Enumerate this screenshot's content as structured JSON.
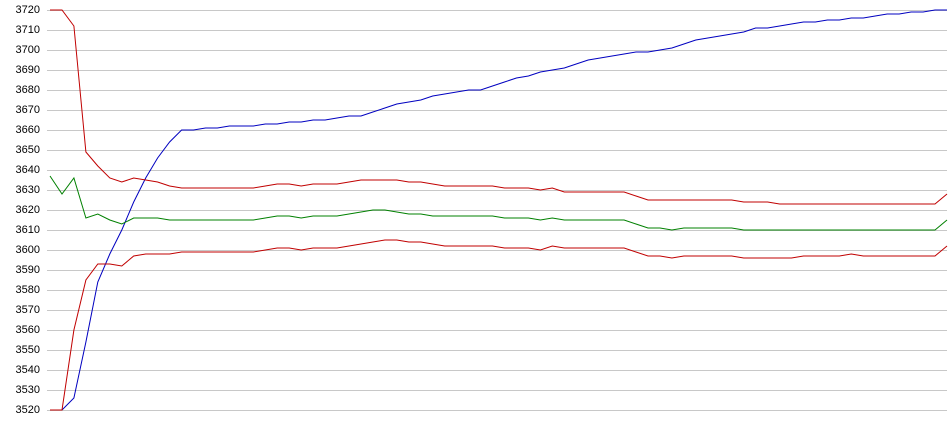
{
  "chart_data": {
    "type": "line",
    "categories": [
      null,
      null,
      null,
      null,
      null,
      null,
      null,
      null,
      null,
      null,
      null,
      null,
      null,
      null,
      null,
      null,
      null,
      null,
      null,
      null,
      null,
      null,
      null,
      null,
      null,
      null,
      null,
      null,
      null,
      null,
      null,
      null,
      null,
      null,
      null,
      null,
      null,
      null,
      null,
      null,
      null,
      null,
      null,
      null,
      null,
      null,
      null,
      null,
      null,
      null,
      null,
      null,
      null,
      null,
      null,
      null,
      null,
      null,
      null,
      null,
      null,
      null,
      null,
      null,
      null,
      null,
      null,
      null,
      null,
      null,
      null,
      null,
      null,
      null,
      null,
      null
    ],
    "series": [
      {
        "color": "#0000c0",
        "values": [
          3520,
          3520,
          3526,
          3554,
          3584,
          3598,
          3610,
          3624,
          3636,
          3646,
          3654,
          3660,
          3660,
          3661,
          3661,
          3662,
          3662,
          3662,
          3663,
          3663,
          3664,
          3664,
          3665,
          3665,
          3666,
          3667,
          3667,
          3669,
          3671,
          3673,
          3674,
          3675,
          3677,
          3678,
          3679,
          3680,
          3680,
          3682,
          3684,
          3686,
          3687,
          3689,
          3690,
          3691,
          3693,
          3695,
          3696,
          3697,
          3698,
          3699,
          3699,
          3700,
          3701,
          3703,
          3705,
          3706,
          3707,
          3708,
          3709,
          3711,
          3711,
          3712,
          3713,
          3714,
          3714,
          3715,
          3715,
          3716,
          3716,
          3717,
          3718,
          3718,
          3719,
          3719,
          3720,
          3720
        ]
      },
      {
        "color": "#c00000",
        "values": [
          3720,
          3720,
          3712,
          3649,
          3642,
          3636,
          3634,
          3636,
          3635,
          3634,
          3632,
          3631,
          3631,
          3631,
          3631,
          3631,
          3631,
          3631,
          3632,
          3633,
          3633,
          3632,
          3633,
          3633,
          3633,
          3634,
          3635,
          3635,
          3635,
          3635,
          3634,
          3634,
          3633,
          3632,
          3632,
          3632,
          3632,
          3632,
          3631,
          3631,
          3631,
          3630,
          3631,
          3629,
          3629,
          3629,
          3629,
          3629,
          3629,
          3627,
          3625,
          3625,
          3625,
          3625,
          3625,
          3625,
          3625,
          3625,
          3624,
          3624,
          3624,
          3623,
          3623,
          3623,
          3623,
          3623,
          3623,
          3623,
          3623,
          3623,
          3623,
          3623,
          3623,
          3623,
          3623,
          3628
        ]
      },
      {
        "color": "#008000",
        "values": [
          3637,
          3628,
          3636,
          3616,
          3618,
          3615,
          3613,
          3616,
          3616,
          3616,
          3615,
          3615,
          3615,
          3615,
          3615,
          3615,
          3615,
          3615,
          3616,
          3617,
          3617,
          3616,
          3617,
          3617,
          3617,
          3618,
          3619,
          3620,
          3620,
          3619,
          3618,
          3618,
          3617,
          3617,
          3617,
          3617,
          3617,
          3617,
          3616,
          3616,
          3616,
          3615,
          3616,
          3615,
          3615,
          3615,
          3615,
          3615,
          3615,
          3613,
          3611,
          3611,
          3610,
          3611,
          3611,
          3611,
          3611,
          3611,
          3610,
          3610,
          3610,
          3610,
          3610,
          3610,
          3610,
          3610,
          3610,
          3610,
          3610,
          3610,
          3610,
          3610,
          3610,
          3610,
          3610,
          3615
        ]
      },
      {
        "color": "#c00000",
        "values": [
          3520,
          3520,
          3560,
          3585,
          3593,
          3593,
          3592,
          3597,
          3598,
          3598,
          3598,
          3599,
          3599,
          3599,
          3599,
          3599,
          3599,
          3599,
          3600,
          3601,
          3601,
          3600,
          3601,
          3601,
          3601,
          3602,
          3603,
          3604,
          3605,
          3605,
          3604,
          3604,
          3603,
          3602,
          3602,
          3602,
          3602,
          3602,
          3601,
          3601,
          3601,
          3600,
          3602,
          3601,
          3601,
          3601,
          3601,
          3601,
          3601,
          3599,
          3597,
          3597,
          3596,
          3597,
          3597,
          3597,
          3597,
          3597,
          3596,
          3596,
          3596,
          3596,
          3596,
          3597,
          3597,
          3597,
          3597,
          3598,
          3597,
          3597,
          3597,
          3597,
          3597,
          3597,
          3597,
          3602
        ]
      }
    ],
    "ylim": [
      3520,
      3720
    ],
    "yticks": [
      3520,
      3530,
      3540,
      3550,
      3560,
      3570,
      3580,
      3590,
      3600,
      3610,
      3620,
      3630,
      3640,
      3650,
      3660,
      3670,
      3680,
      3690,
      3700,
      3710,
      3720
    ],
    "grid": true
  }
}
